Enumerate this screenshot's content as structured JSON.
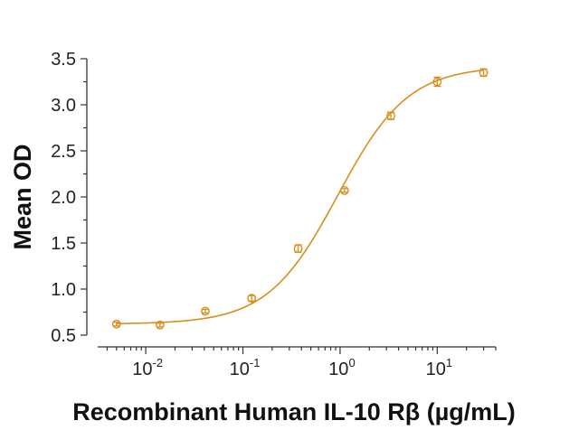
{
  "chart_data": {
    "type": "scatter",
    "title": "",
    "xlabel": "Recombinant Human IL-10 Rβ (µg/mL)",
    "ylabel": "Mean OD",
    "x_scale": "log10",
    "xlim": [
      0.0032,
      40
    ],
    "ylim": [
      0.5,
      3.5
    ],
    "yticks": [
      {
        "value": 0.5,
        "label": "0.5"
      },
      {
        "value": 1.0,
        "label": "1.0"
      },
      {
        "value": 1.5,
        "label": "1.5"
      },
      {
        "value": 2.0,
        "label": "2.0"
      },
      {
        "value": 2.5,
        "label": "2.5"
      },
      {
        "value": 3.0,
        "label": "3.0"
      },
      {
        "value": 3.5,
        "label": "3.5"
      }
    ],
    "xticks": [
      {
        "value": 0.01,
        "base": "10",
        "exp": "-2"
      },
      {
        "value": 0.1,
        "base": "10",
        "exp": "-1"
      },
      {
        "value": 1,
        "base": "10",
        "exp": "0"
      },
      {
        "value": 10,
        "base": "10",
        "exp": "1"
      }
    ],
    "grid": false,
    "color": "#D98E1C",
    "series": [
      {
        "points": [
          {
            "x": 0.005,
            "y": 0.62,
            "err": 0.02
          },
          {
            "x": 0.014,
            "y": 0.61,
            "err": 0.02
          },
          {
            "x": 0.041,
            "y": 0.76,
            "err": 0.02
          },
          {
            "x": 0.123,
            "y": 0.9,
            "err": 0.03
          },
          {
            "x": 0.37,
            "y": 1.44,
            "err": 0.04
          },
          {
            "x": 1.11,
            "y": 2.07,
            "err": 0.02
          },
          {
            "x": 3.33,
            "y": 2.88,
            "err": 0.04
          },
          {
            "x": 10,
            "y": 3.25,
            "err": 0.05
          },
          {
            "x": 30,
            "y": 3.35,
            "err": 0.04
          }
        ],
        "fit": {
          "bottom": 0.62,
          "top": 3.42,
          "ec50": 0.95,
          "hill": 1.2
        }
      }
    ]
  }
}
